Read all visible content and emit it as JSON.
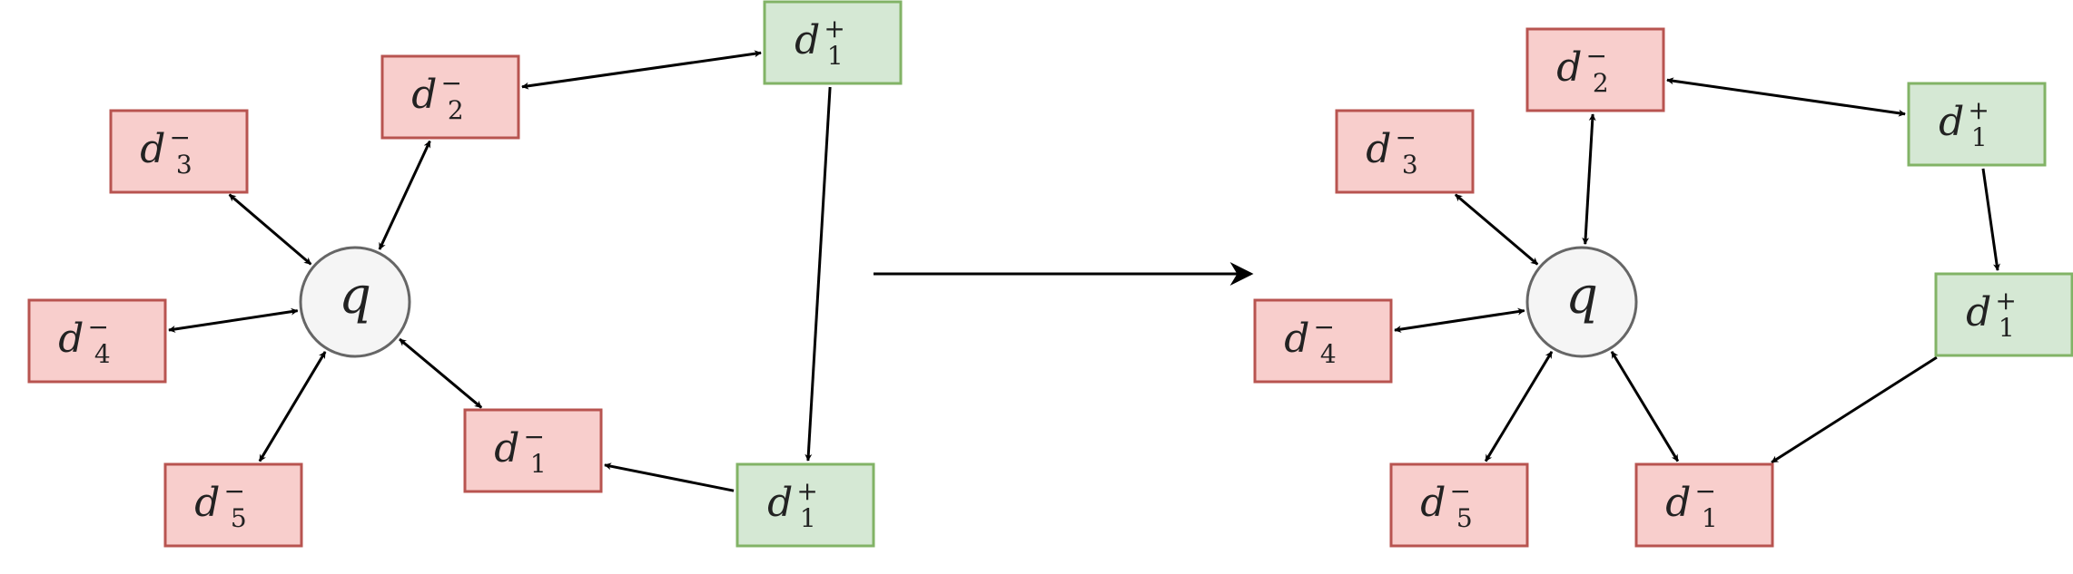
{
  "colors": {
    "negative_fill": "#f8cecc",
    "negative_stroke": "#b85450",
    "positive_fill": "#d5e8d4",
    "positive_stroke": "#82b366",
    "query_fill": "#f5f5f5",
    "query_stroke": "#666666",
    "edge": "#000000"
  },
  "diagrams": [
    {
      "id": "before",
      "query": {
        "label": "q"
      },
      "nodes": [
        {
          "id": "d3m",
          "base": "d",
          "sub": "3",
          "sup": "−",
          "kind": "negative"
        },
        {
          "id": "d2m",
          "base": "d",
          "sub": "2",
          "sup": "−",
          "kind": "negative"
        },
        {
          "id": "d4m",
          "base": "d",
          "sub": "4",
          "sup": "−",
          "kind": "negative"
        },
        {
          "id": "d5m",
          "base": "d",
          "sub": "5",
          "sup": "−",
          "kind": "negative"
        },
        {
          "id": "d1m",
          "base": "d",
          "sub": "1",
          "sup": "−",
          "kind": "negative"
        },
        {
          "id": "d1pA",
          "base": "d",
          "sub": "1",
          "sup": "+",
          "kind": "positive"
        },
        {
          "id": "d1pB",
          "base": "d",
          "sub": "1",
          "sup": "+",
          "kind": "positive"
        }
      ]
    },
    {
      "id": "after",
      "query": {
        "label": "q"
      },
      "nodes": [
        {
          "id": "d2m",
          "base": "d",
          "sub": "2",
          "sup": "−",
          "kind": "negative"
        },
        {
          "id": "d3m",
          "base": "d",
          "sub": "3",
          "sup": "−",
          "kind": "negative"
        },
        {
          "id": "d4m",
          "base": "d",
          "sub": "4",
          "sup": "−",
          "kind": "negative"
        },
        {
          "id": "d5m",
          "base": "d",
          "sub": "5",
          "sup": "−",
          "kind": "negative"
        },
        {
          "id": "d1m",
          "base": "d",
          "sub": "1",
          "sup": "−",
          "kind": "negative"
        },
        {
          "id": "d1pA",
          "base": "d",
          "sub": "1",
          "sup": "+",
          "kind": "positive"
        },
        {
          "id": "d1pB",
          "base": "d",
          "sub": "1",
          "sup": "+",
          "kind": "positive"
        }
      ]
    }
  ]
}
